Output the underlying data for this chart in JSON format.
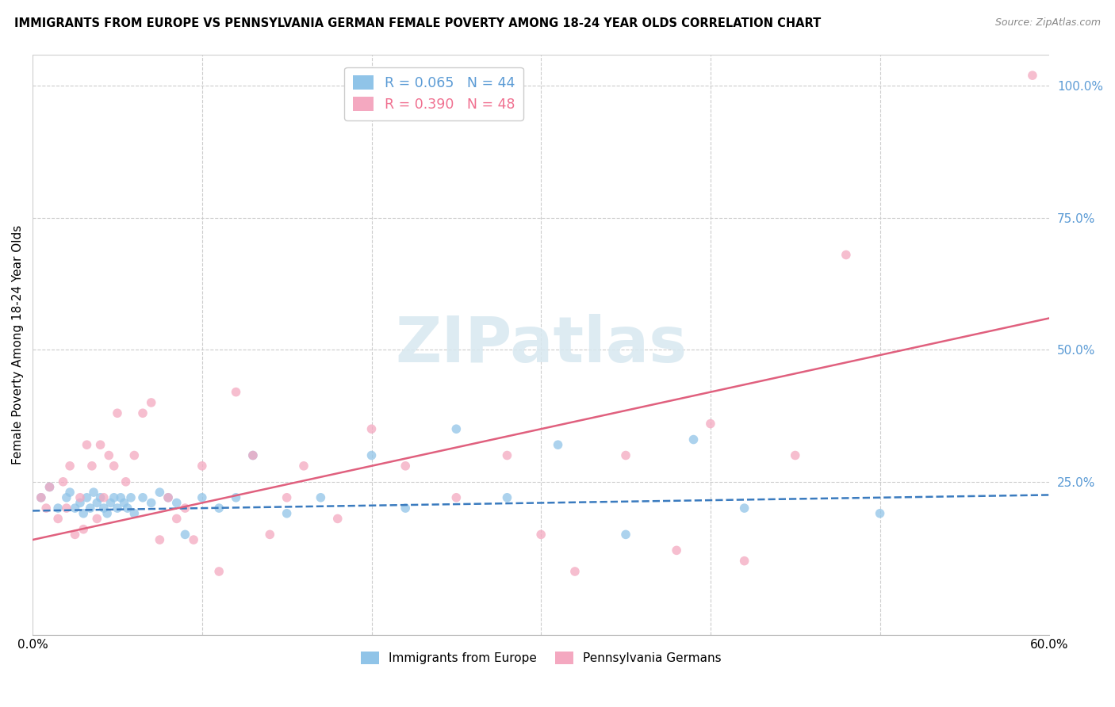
{
  "title": "IMMIGRANTS FROM EUROPE VS PENNSYLVANIA GERMAN FEMALE POVERTY AMONG 18-24 YEAR OLDS CORRELATION CHART",
  "source": "Source: ZipAtlas.com",
  "ylabel": "Female Poverty Among 18-24 Year Olds",
  "right_yticks": [
    "100.0%",
    "75.0%",
    "50.0%",
    "25.0%"
  ],
  "right_ytick_vals": [
    1.0,
    0.75,
    0.5,
    0.25
  ],
  "color_blue": "#90c4e8",
  "color_pink": "#f4a8c0",
  "color_line_blue": "#3a7bbf",
  "color_line_pink": "#e0607e",
  "color_text_blue": "#5b9bd5",
  "color_text_pink": "#f07090",
  "watermark_text": "ZIPatlas",
  "background_color": "#ffffff",
  "xlim": [
    0.0,
    0.6
  ],
  "ylim": [
    -0.04,
    1.06
  ],
  "blue_scatter_x": [
    0.005,
    0.01,
    0.015,
    0.02,
    0.022,
    0.025,
    0.028,
    0.03,
    0.032,
    0.034,
    0.036,
    0.038,
    0.04,
    0.042,
    0.044,
    0.046,
    0.048,
    0.05,
    0.052,
    0.054,
    0.056,
    0.058,
    0.06,
    0.065,
    0.07,
    0.075,
    0.08,
    0.085,
    0.09,
    0.1,
    0.11,
    0.12,
    0.13,
    0.15,
    0.17,
    0.2,
    0.22,
    0.25,
    0.28,
    0.31,
    0.35,
    0.39,
    0.42,
    0.5
  ],
  "blue_scatter_y": [
    0.22,
    0.24,
    0.2,
    0.22,
    0.23,
    0.2,
    0.21,
    0.19,
    0.22,
    0.2,
    0.23,
    0.21,
    0.22,
    0.2,
    0.19,
    0.21,
    0.22,
    0.2,
    0.22,
    0.21,
    0.2,
    0.22,
    0.19,
    0.22,
    0.21,
    0.23,
    0.22,
    0.21,
    0.15,
    0.22,
    0.2,
    0.22,
    0.3,
    0.19,
    0.22,
    0.3,
    0.2,
    0.35,
    0.22,
    0.32,
    0.15,
    0.33,
    0.2,
    0.19
  ],
  "pink_scatter_x": [
    0.005,
    0.008,
    0.01,
    0.015,
    0.018,
    0.02,
    0.022,
    0.025,
    0.028,
    0.03,
    0.032,
    0.035,
    0.038,
    0.04,
    0.042,
    0.045,
    0.048,
    0.05,
    0.055,
    0.06,
    0.065,
    0.07,
    0.075,
    0.08,
    0.085,
    0.09,
    0.095,
    0.1,
    0.11,
    0.12,
    0.13,
    0.14,
    0.15,
    0.16,
    0.18,
    0.2,
    0.22,
    0.25,
    0.28,
    0.3,
    0.32,
    0.35,
    0.38,
    0.4,
    0.42,
    0.45,
    0.48,
    0.59
  ],
  "pink_scatter_y": [
    0.22,
    0.2,
    0.24,
    0.18,
    0.25,
    0.2,
    0.28,
    0.15,
    0.22,
    0.16,
    0.32,
    0.28,
    0.18,
    0.32,
    0.22,
    0.3,
    0.28,
    0.38,
    0.25,
    0.3,
    0.38,
    0.4,
    0.14,
    0.22,
    0.18,
    0.2,
    0.14,
    0.28,
    0.08,
    0.42,
    0.3,
    0.15,
    0.22,
    0.28,
    0.18,
    0.35,
    0.28,
    0.22,
    0.3,
    0.15,
    0.08,
    0.3,
    0.12,
    0.36,
    0.1,
    0.3,
    0.68,
    1.02
  ],
  "blue_line_x": [
    0.0,
    0.6
  ],
  "blue_line_y": [
    0.195,
    0.225
  ],
  "pink_line_x": [
    0.0,
    0.6
  ],
  "pink_line_y": [
    0.14,
    0.56
  ]
}
